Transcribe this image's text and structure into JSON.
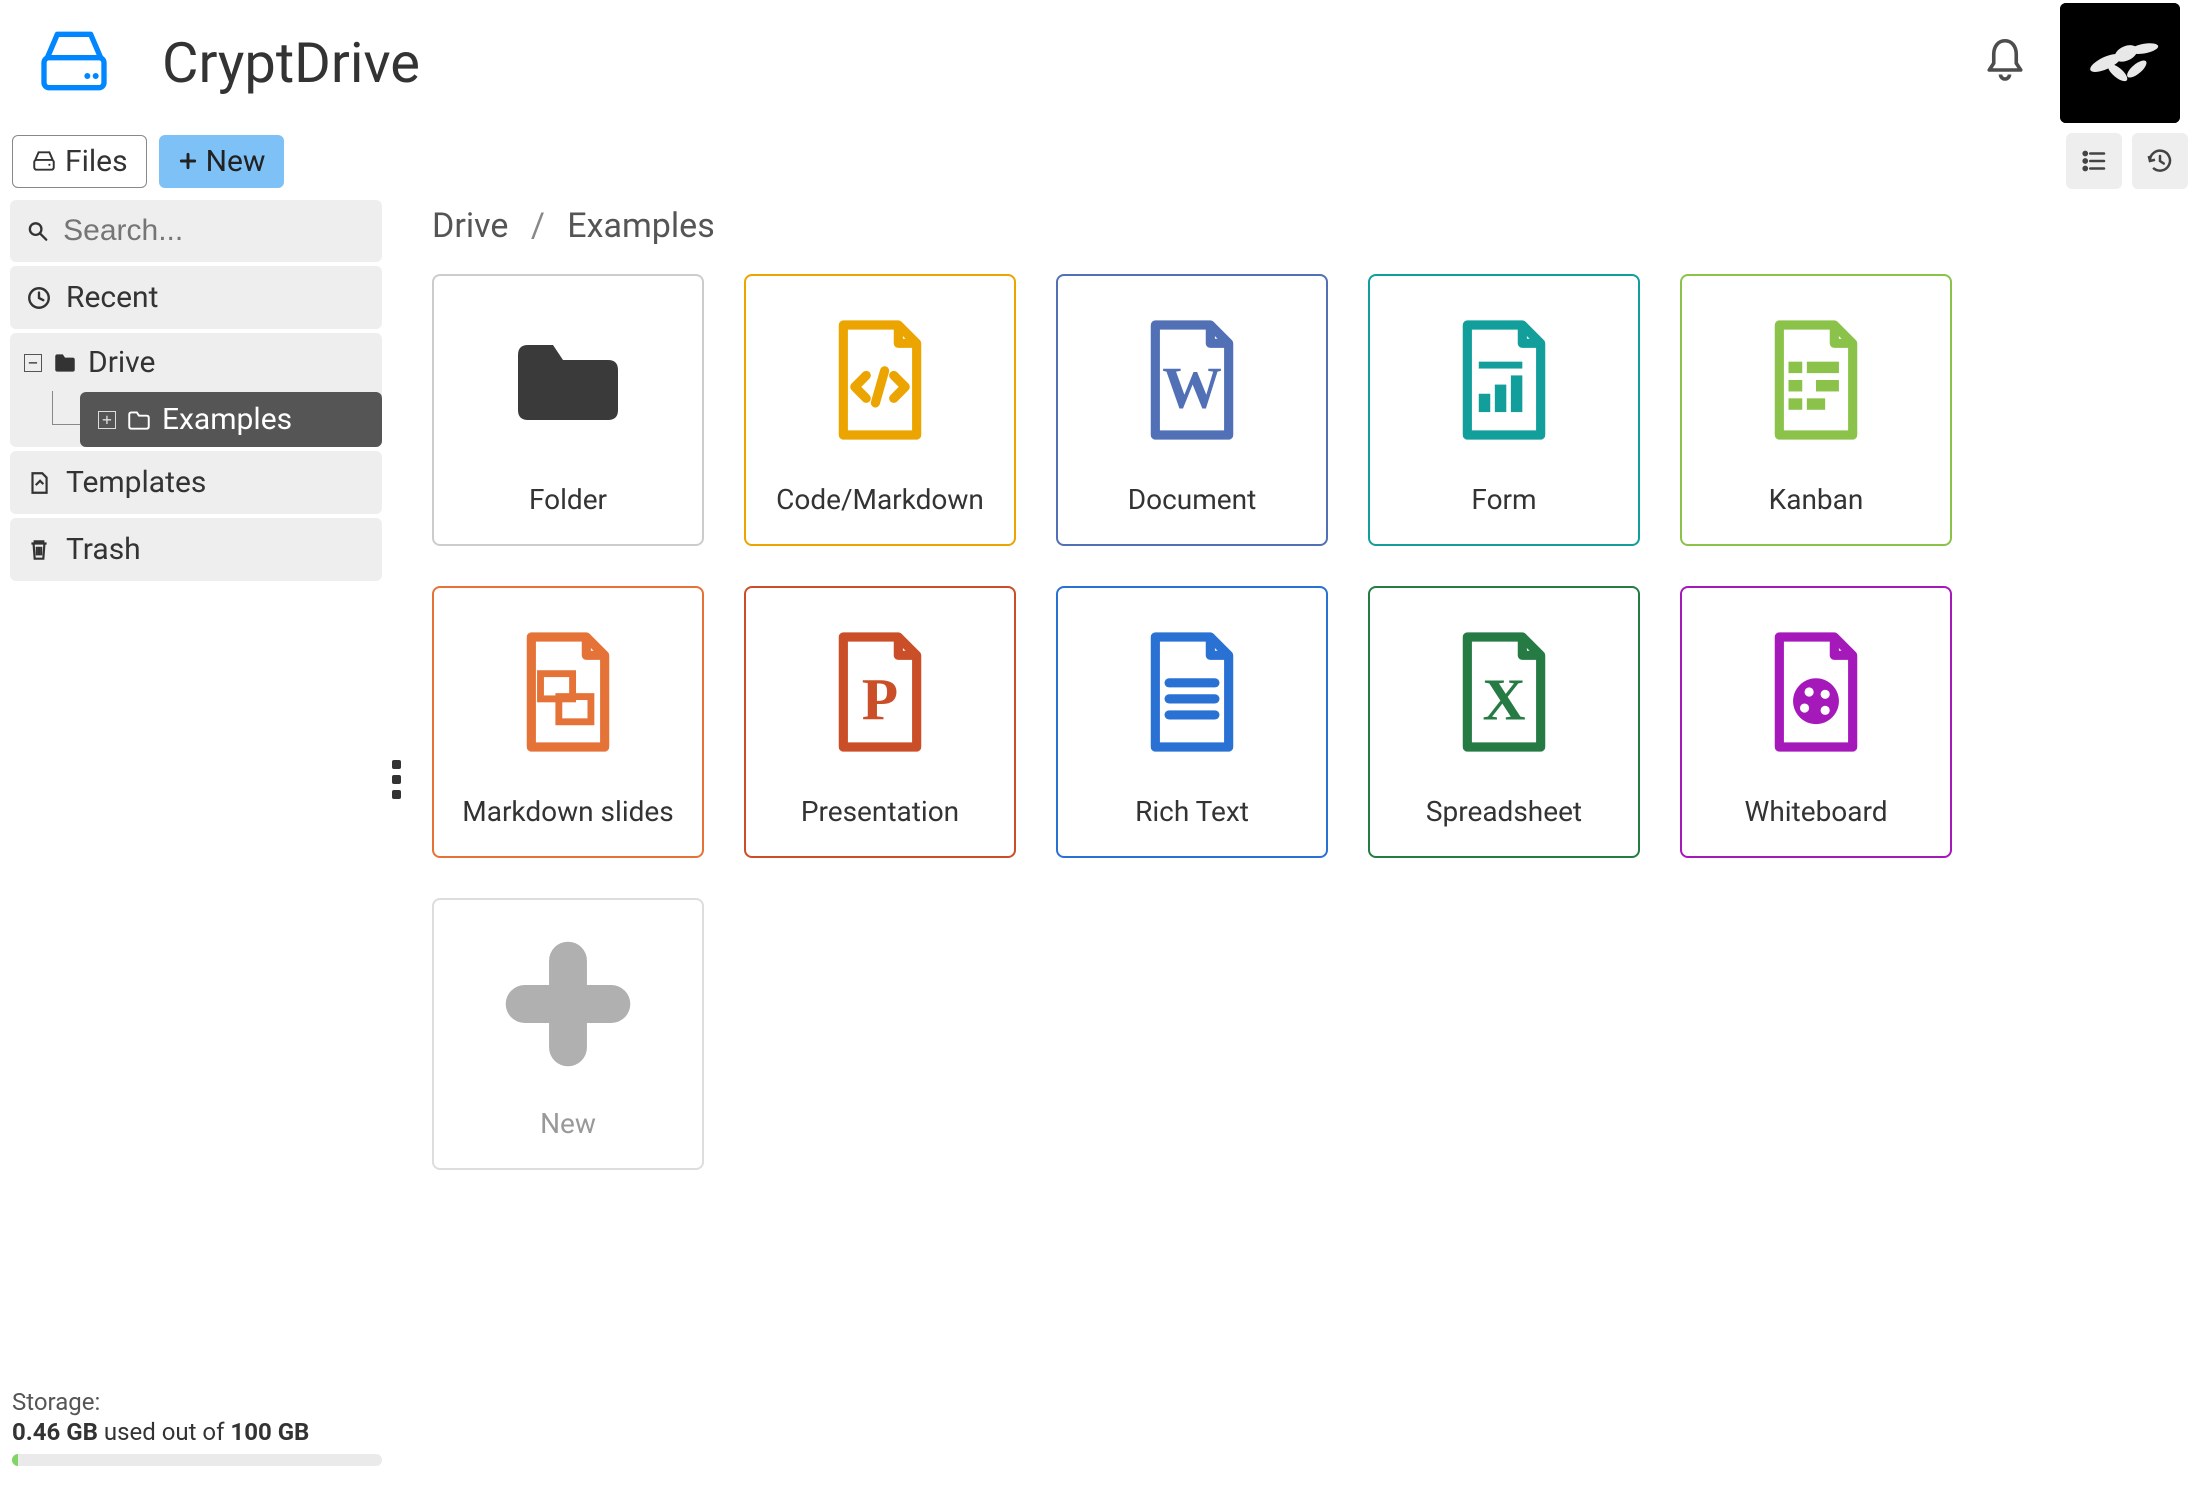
{
  "app": {
    "title": "CryptDrive",
    "logo_color": "#0087ff"
  },
  "header": {
    "bell_color": "#4d4d4d",
    "avatar_bg": "#000000"
  },
  "toolbar": {
    "files_label": "Files",
    "new_label": "New",
    "new_bg": "#7ec1f7",
    "list_view_icon": "list-icon",
    "history_icon": "history-icon"
  },
  "sidebar": {
    "search_placeholder": "Search...",
    "recent_label": "Recent",
    "tree": {
      "root_label": "Drive",
      "root_icon_color": "#333333",
      "child_label": "Examples",
      "child_selected_bg": "#555555"
    },
    "templates_label": "Templates",
    "trash_label": "Trash",
    "item_bg": "#eeeeee"
  },
  "breadcrumb": {
    "parts": [
      "Drive",
      "Examples"
    ],
    "separator": "/"
  },
  "tiles": [
    {
      "id": "folder",
      "label": "Folder",
      "border": "#cccccc",
      "icon_color": "#3a3a3a"
    },
    {
      "id": "code",
      "label": "Code/Markdown",
      "border": "#eca400",
      "icon_color": "#eca400"
    },
    {
      "id": "document",
      "label": "Document",
      "border": "#5170b5",
      "icon_color": "#5170b5"
    },
    {
      "id": "form",
      "label": "Form",
      "border": "#129e9a",
      "icon_color": "#129e9a"
    },
    {
      "id": "kanban",
      "label": "Kanban",
      "border": "#8bc34a",
      "icon_color": "#8bc34a"
    },
    {
      "id": "mdslides",
      "label": "Markdown slides",
      "border": "#e57338",
      "icon_color": "#e57338"
    },
    {
      "id": "presentation",
      "label": "Presentation",
      "border": "#ca4e27",
      "icon_color": "#ca4e27"
    },
    {
      "id": "richtext",
      "label": "Rich Text",
      "border": "#2a71d4",
      "icon_color": "#2a71d4"
    },
    {
      "id": "spreadsheet",
      "label": "Spreadsheet",
      "border": "#257b43",
      "icon_color": "#257b43"
    },
    {
      "id": "whiteboard",
      "label": "Whiteboard",
      "border": "#a519ba",
      "icon_color": "#a519ba"
    },
    {
      "id": "newtile",
      "label": "New",
      "border": "#dddddd",
      "icon_color": "#b0b0b0"
    }
  ],
  "storage": {
    "label": "Storage:",
    "used": "0.46 GB",
    "mid_text": "used out of",
    "total": "100 GB",
    "used_gb": 0.46,
    "total_gb": 100,
    "bar_bg": "#eaeaea",
    "bar_fill": "#81d468"
  }
}
